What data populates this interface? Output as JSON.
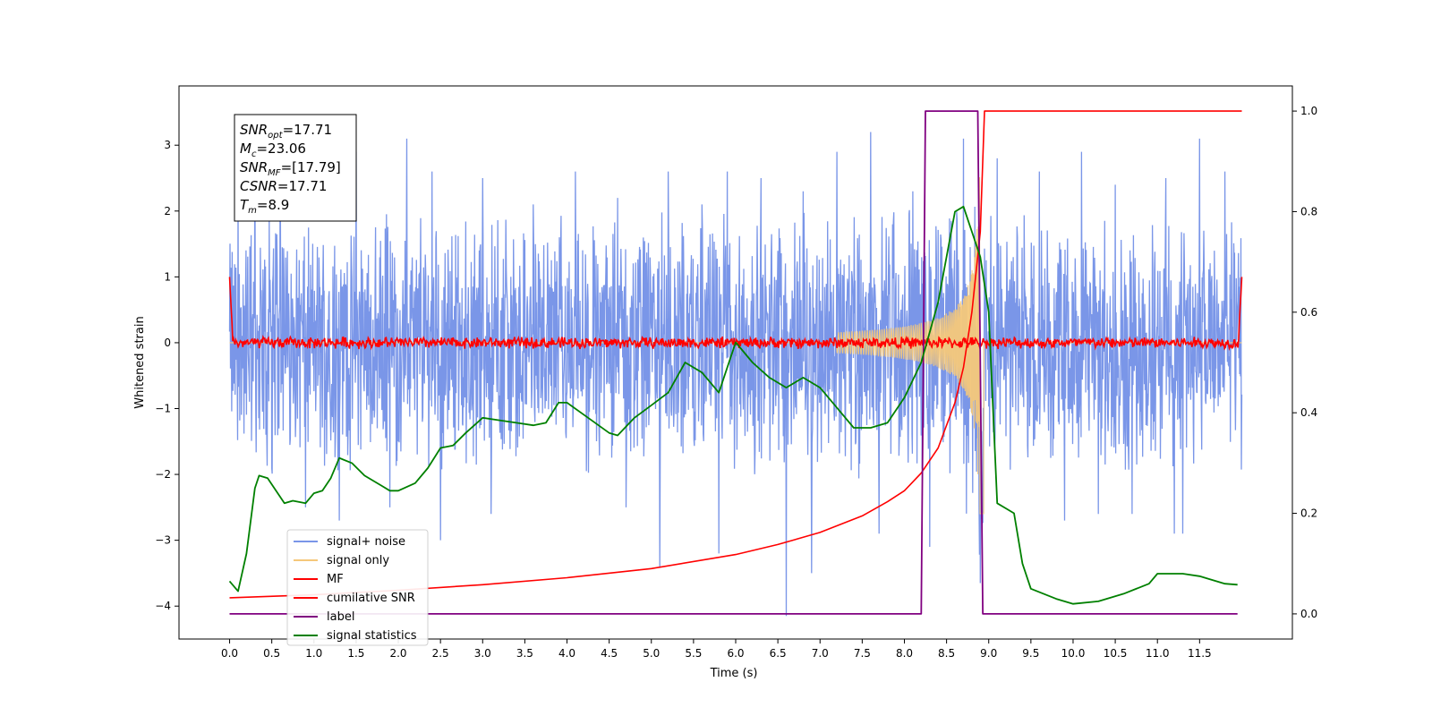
{
  "chart_data": {
    "type": "line",
    "xlabel": "Time (s)",
    "ylabel": "Whitened strain",
    "xlim": [
      -0.6,
      12.6
    ],
    "ylim_left": [
      -4.5,
      3.9
    ],
    "ylim_right": [
      -0.05,
      1.05
    ],
    "x_ticks": [
      "0.0",
      "0.5",
      "1.0",
      "1.5",
      "2.0",
      "2.5",
      "3.0",
      "3.5",
      "4.0",
      "4.5",
      "5.0",
      "5.5",
      "6.0",
      "6.5",
      "7.0",
      "7.5",
      "8.0",
      "8.5",
      "9.0",
      "9.5",
      "10.0",
      "10.5",
      "11.0",
      "11.5"
    ],
    "y_ticks_left": [
      "3",
      "2",
      "1",
      "0",
      "−1",
      "−2",
      "−3",
      "−4"
    ],
    "y_ticks_right": [
      "1.0",
      "0.8",
      "0.6",
      "0.4",
      "0.2",
      "0.0"
    ],
    "grid": false,
    "legend_position": "lower-left",
    "annotation": [
      {
        "base": "SNR",
        "sub": "opt",
        "value": "=17.71"
      },
      {
        "base": "M",
        "sub": "c",
        "value": "=23.06"
      },
      {
        "base": "SNR",
        "sub": "MF",
        "value": "=[17.79]"
      },
      {
        "base": "CSNR",
        "sub": "",
        "value": "=17.71"
      },
      {
        "base": "T",
        "sub": "m",
        "value": "=8.9"
      }
    ],
    "colors": {
      "noise": "#7a96e8",
      "signal": "#f5c87a",
      "mf": "#ff0000",
      "csnr": "#ff0000",
      "label": "#800080",
      "stats": "#008000"
    },
    "series": [
      {
        "name": "signal+ noise",
        "axis": "left",
        "t_start": 0.0,
        "t_end": 12.0,
        "noise_range": [
          -2.3,
          2.0
        ],
        "noise_spikes_up": [
          [
            0.1,
            2.4
          ],
          [
            0.3,
            3.1
          ],
          [
            0.6,
            2.9
          ],
          [
            1.3,
            2.8
          ],
          [
            1.5,
            2.9
          ],
          [
            2.1,
            3.1
          ],
          [
            2.4,
            2.6
          ],
          [
            3.0,
            2.5
          ],
          [
            3.6,
            2.1
          ],
          [
            4.1,
            2.6
          ],
          [
            4.6,
            2.2
          ],
          [
            5.2,
            2.6
          ],
          [
            5.6,
            2.1
          ],
          [
            5.9,
            2.6
          ],
          [
            6.3,
            2.5
          ],
          [
            6.6,
            3.1
          ],
          [
            6.8,
            2.3
          ],
          [
            7.2,
            2.9
          ],
          [
            7.6,
            3.2
          ],
          [
            8.1,
            2.3
          ],
          [
            8.7,
            3.1
          ],
          [
            9.1,
            2.8
          ],
          [
            9.6,
            2.6
          ],
          [
            10.1,
            2.9
          ],
          [
            10.5,
            2.4
          ],
          [
            11.1,
            2.5
          ],
          [
            11.5,
            3.1
          ],
          [
            11.8,
            2.6
          ]
        ],
        "noise_spikes_down": [
          [
            0.9,
            -2.5
          ],
          [
            1.3,
            -2.7
          ],
          [
            1.9,
            -2.5
          ],
          [
            2.5,
            -3.0
          ],
          [
            3.1,
            -2.6
          ],
          [
            4.7,
            -2.5
          ],
          [
            5.1,
            -3.4
          ],
          [
            5.8,
            -3.2
          ],
          [
            6.6,
            -4.15
          ],
          [
            6.9,
            -3.5
          ],
          [
            7.7,
            -2.9
          ],
          [
            8.3,
            -3.1
          ],
          [
            8.9,
            -3.65
          ],
          [
            9.9,
            -2.7
          ],
          [
            10.3,
            -2.6
          ],
          [
            10.7,
            -2.6
          ],
          [
            11.2,
            -2.9
          ],
          [
            11.3,
            -2.9
          ]
        ]
      },
      {
        "name": "signal only",
        "axis": "left",
        "chirp": {
          "t_start": 7.2,
          "t_merge": 8.9,
          "peak_amp": 3.3
        }
      },
      {
        "name": "MF",
        "axis": "left",
        "baseline": 0.0,
        "start_value": 1.0,
        "end_value": 1.0,
        "jitter": 0.09
      },
      {
        "name": "cumilative SNR",
        "axis": "right",
        "x": [
          0.0,
          1.0,
          2.0,
          3.0,
          4.0,
          5.0,
          6.0,
          6.5,
          7.0,
          7.5,
          7.8,
          8.0,
          8.2,
          8.4,
          8.6,
          8.7,
          8.8,
          8.85,
          8.9,
          8.95,
          12.0
        ],
        "y": [
          0.032,
          0.038,
          0.047,
          0.058,
          0.072,
          0.09,
          0.118,
          0.138,
          0.162,
          0.195,
          0.223,
          0.245,
          0.28,
          0.33,
          0.42,
          0.49,
          0.6,
          0.68,
          0.76,
          1.0,
          1.0
        ]
      },
      {
        "name": "label",
        "axis": "right",
        "x": [
          0.0,
          8.2,
          8.25,
          8.87,
          8.93,
          11.95
        ],
        "y": [
          0.0,
          0.0,
          1.0,
          1.0,
          0.0,
          0.0
        ]
      },
      {
        "name": "signal statistics",
        "axis": "right",
        "x": [
          0.0,
          0.1,
          0.2,
          0.3,
          0.35,
          0.45,
          0.55,
          0.65,
          0.75,
          0.9,
          1.0,
          1.1,
          1.2,
          1.3,
          1.45,
          1.6,
          1.8,
          1.9,
          2.0,
          2.2,
          2.35,
          2.5,
          2.65,
          2.8,
          3.0,
          3.2,
          3.4,
          3.6,
          3.75,
          3.9,
          4.0,
          4.25,
          4.5,
          4.6,
          4.8,
          5.0,
          5.2,
          5.4,
          5.6,
          5.8,
          6.0,
          6.2,
          6.4,
          6.6,
          6.8,
          7.0,
          7.2,
          7.4,
          7.6,
          7.8,
          8.0,
          8.2,
          8.4,
          8.5,
          8.6,
          8.7,
          8.8,
          8.9,
          9.0,
          9.1,
          9.2,
          9.3,
          9.4,
          9.5,
          9.8,
          10.0,
          10.3,
          10.6,
          10.9,
          11.0,
          11.3,
          11.5,
          11.6,
          11.8,
          11.95
        ],
        "y": [
          0.065,
          0.045,
          0.12,
          0.25,
          0.275,
          0.27,
          0.245,
          0.22,
          0.225,
          0.22,
          0.24,
          0.245,
          0.27,
          0.31,
          0.3,
          0.275,
          0.255,
          0.245,
          0.245,
          0.26,
          0.29,
          0.33,
          0.335,
          0.36,
          0.39,
          0.385,
          0.38,
          0.375,
          0.38,
          0.42,
          0.42,
          0.39,
          0.36,
          0.355,
          0.39,
          0.415,
          0.44,
          0.5,
          0.48,
          0.44,
          0.54,
          0.5,
          0.47,
          0.45,
          0.47,
          0.45,
          0.41,
          0.37,
          0.37,
          0.38,
          0.43,
          0.5,
          0.62,
          0.71,
          0.8,
          0.81,
          0.76,
          0.71,
          0.6,
          0.22,
          0.21,
          0.2,
          0.1,
          0.05,
          0.03,
          0.02,
          0.025,
          0.04,
          0.06,
          0.08,
          0.08,
          0.075,
          0.07,
          0.06,
          0.058
        ]
      }
    ]
  }
}
